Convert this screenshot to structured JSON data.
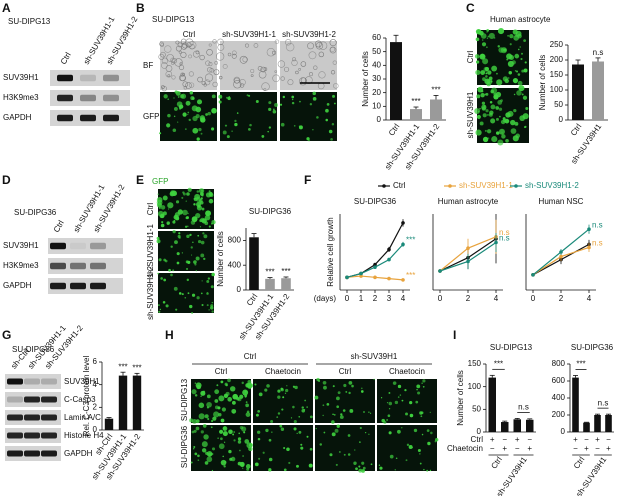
{
  "panels": {
    "A": {
      "letter": "A",
      "title": "SU-DIPG13",
      "lanes": [
        "Ctrl",
        "sh-SUV39H1-1",
        "sh-SUV39H1-2"
      ],
      "rows": [
        "SUV39H1",
        "H3K9me3",
        "GAPDH"
      ]
    },
    "B": {
      "letter": "B",
      "title": "SU-DIPG13",
      "columns": [
        "Ctrl",
        "sh-SUV39H1-1",
        "sh-SUV39H1-2"
      ],
      "rows": [
        "BF",
        "GFP"
      ]
    },
    "C": {
      "letter": "C",
      "title": "Human astrocyte",
      "rows": [
        "Ctrl",
        "sh-SUV39H1"
      ]
    },
    "D": {
      "letter": "D",
      "title": "SU-DIPG36",
      "lanes": [
        "Ctrl",
        "sh-SUV39H1-1",
        "sh-SUV39H1-2"
      ],
      "rows": [
        "SUV39H1",
        "H3K9me3",
        "GAPDH"
      ]
    },
    "E": {
      "letter": "E",
      "channel": "GFP",
      "rows": [
        "Ctrl",
        "sh-SUV39H1-1",
        "sh-SUV39H1-2"
      ]
    },
    "F": {
      "letter": "F"
    },
    "G": {
      "letter": "G",
      "title": "SU-DIPG36",
      "lanes": [
        "sh-Ctrl",
        "sh-SUV39H1-1",
        "sh-SUV39H1-2"
      ],
      "rows": [
        "SUV39H1",
        "C-Casp3",
        "Lamin A/C",
        "Histone H4",
        "GAPDH"
      ]
    },
    "H": {
      "letter": "H",
      "groups": [
        "Ctrl",
        "sh-SUV39H1"
      ],
      "columns": [
        "Ctrl",
        "Chaetocin",
        "Ctrl",
        "Chaetocin"
      ],
      "rows": [
        "SU-DIPG13",
        "SU-DIPG36"
      ]
    },
    "I": {
      "letter": "I"
    }
  },
  "chart_data": [
    {
      "type": "bar",
      "categories": [
        "Ctrl",
        "sh-SUV39H1-1",
        "sh-SUV39H1-2"
      ],
      "values": [
        57,
        8,
        15
      ],
      "errors": [
        5,
        1.5,
        3
      ],
      "value_labels": [
        null,
        "***",
        "***"
      ],
      "colors": [
        "#111111",
        "#9a9a9a",
        "#9a9a9a"
      ],
      "ylabel": "Number of cells",
      "ylim": [
        0,
        60
      ],
      "yticks": [
        0,
        10,
        20,
        30,
        40,
        50,
        60
      ]
    },
    {
      "type": "bar",
      "categories": [
        "Ctrl",
        "sh-SUV39H1"
      ],
      "values": [
        185,
        195
      ],
      "errors": [
        15,
        12
      ],
      "value_labels": [
        null,
        "n.s"
      ],
      "colors": [
        "#111111",
        "#9a9a9a"
      ],
      "ylabel": "Number of cells",
      "ylim": [
        0,
        250
      ],
      "yticks": [
        0,
        50,
        100,
        150,
        200,
        250
      ]
    },
    {
      "type": "bar",
      "title": "SU-DIPG36",
      "categories": [
        "Ctrl",
        "sh-SUV39H1-1",
        "sh-SUV39H1-2"
      ],
      "values": [
        850,
        180,
        190
      ],
      "errors": [
        60,
        20,
        20
      ],
      "value_labels": [
        null,
        "***",
        "***"
      ],
      "colors": [
        "#111111",
        "#9a9a9a",
        "#9a9a9a"
      ],
      "ylabel": "Number of cells",
      "ylim": [
        0,
        1000
      ],
      "yticks": [
        0,
        400,
        800
      ]
    },
    {
      "type": "line",
      "title": "SU-DIPG36",
      "ylabel": "Relative cell growth",
      "xlabel": "(days)",
      "x": [
        0,
        1,
        2,
        3,
        4
      ],
      "xlim": [
        -0.5,
        4.5
      ],
      "xticks": [
        0,
        1,
        2,
        3,
        4
      ],
      "ylim": [
        0,
        6
      ],
      "series": [
        {
          "name": "Ctrl",
          "color": "#111111",
          "values": [
            1,
            1.3,
            2,
            3.2,
            5.3
          ],
          "errors": [
            0.05,
            0.1,
            0.15,
            0.2,
            0.3
          ]
        },
        {
          "name": "sh-SUV39H1-1",
          "color": "#e8a33d",
          "values": [
            1,
            1.1,
            1,
            0.9,
            0.8
          ],
          "errors": [
            0.05,
            0.05,
            0.05,
            0.05,
            0.05
          ],
          "end_label": "***"
        },
        {
          "name": "sh-SUV39H1-2",
          "color": "#1a8a7a",
          "values": [
            1,
            1.3,
            1.8,
            2.4,
            3.6
          ],
          "errors": [
            0.05,
            0.1,
            0.1,
            0.15,
            0.2
          ],
          "end_label": "***"
        }
      ]
    },
    {
      "type": "line",
      "title": "Human astrocyte",
      "x": [
        0,
        2,
        4
      ],
      "xlim": [
        -0.5,
        4.5
      ],
      "xticks": [
        0,
        2,
        4
      ],
      "ylim": [
        0,
        4
      ],
      "series": [
        {
          "color": "#111111",
          "values": [
            1,
            1.7,
            2.7
          ],
          "errors": [
            0.1,
            0.6,
            1.3
          ]
        },
        {
          "color": "#e8a33d",
          "values": [
            1,
            2.2,
            2.8
          ],
          "errors": [
            0.1,
            0.5,
            0.9
          ],
          "end_label": "n.s"
        },
        {
          "color": "#1a8a7a",
          "values": [
            1,
            1.5,
            2.5
          ],
          "errors": [
            0.1,
            0.4,
            0.5
          ],
          "end_label": "n.s"
        }
      ]
    },
    {
      "type": "line",
      "title": "Human NSC",
      "x": [
        0,
        2,
        4
      ],
      "xlim": [
        -0.5,
        4.5
      ],
      "xticks": [
        0,
        2,
        4
      ],
      "ylim": [
        0,
        5
      ],
      "series": [
        {
          "color": "#111111",
          "values": [
            1,
            2,
            3
          ],
          "errors": [
            0.05,
            0.3,
            0.3
          ]
        },
        {
          "color": "#e8a33d",
          "values": [
            1,
            2.2,
            2.8
          ],
          "errors": [
            0.05,
            0.3,
            0.3
          ],
          "end_label": "n.s"
        },
        {
          "color": "#1a8a7a",
          "values": [
            1,
            2.5,
            4
          ],
          "errors": [
            0.05,
            0.2,
            0.3
          ],
          "end_label": "n.s"
        }
      ]
    },
    {
      "type": "bar",
      "categories": [
        "sh-Ctrl",
        "sh-SUV39H1-1",
        "sh-SUV39H1-2"
      ],
      "values": [
        1,
        4.8,
        4.8
      ],
      "errors": [
        0.1,
        0.3,
        0.2
      ],
      "value_labels": [
        null,
        "***",
        "***"
      ],
      "colors": [
        "#111111",
        "#111111",
        "#111111"
      ],
      "ylabel": "Rel. C-C3 protein level",
      "ylim": [
        0,
        6
      ],
      "yticks": [
        0,
        2,
        4,
        6
      ]
    },
    {
      "type": "bar",
      "title": "SU-DIPG13",
      "categories": [
        null,
        null,
        null,
        null
      ],
      "values": [
        120,
        22,
        28,
        27
      ],
      "errors": [
        5,
        2,
        2,
        2
      ],
      "colors": [
        "#111111",
        "#111111",
        "#111111",
        "#111111"
      ],
      "ylabel": "Number of cells",
      "ylim": [
        0,
        150
      ],
      "yticks": [
        0,
        50,
        100,
        150
      ],
      "pair_labels": [
        "***",
        "n.s"
      ],
      "treatment_rows": [
        {
          "label": "Ctrl",
          "signs": [
            "+",
            "−",
            "+",
            "−"
          ]
        },
        {
          "label": "Chaetocin",
          "signs": [
            "−",
            "+",
            "−",
            "+"
          ]
        }
      ],
      "groups": [
        "Ctrl",
        "sh-SUV39H1"
      ]
    },
    {
      "type": "bar",
      "title": "SU-DIPG36",
      "categories": [
        null,
        null,
        null,
        null
      ],
      "values": [
        640,
        110,
        200,
        200
      ],
      "errors": [
        25,
        5,
        10,
        10
      ],
      "colors": [
        "#111111",
        "#111111",
        "#111111",
        "#111111"
      ],
      "ylim": [
        0,
        800
      ],
      "yticks": [
        0,
        200,
        400,
        600,
        800
      ],
      "pair_labels": [
        "***",
        "n.s"
      ],
      "treatment_rows": [
        {
          "signs": [
            "+",
            "−",
            "+",
            "−"
          ]
        },
        {
          "signs": [
            "−",
            "+",
            "−",
            "+"
          ]
        }
      ],
      "groups": [
        "Ctrl",
        "sh-SUV39H1"
      ]
    }
  ]
}
